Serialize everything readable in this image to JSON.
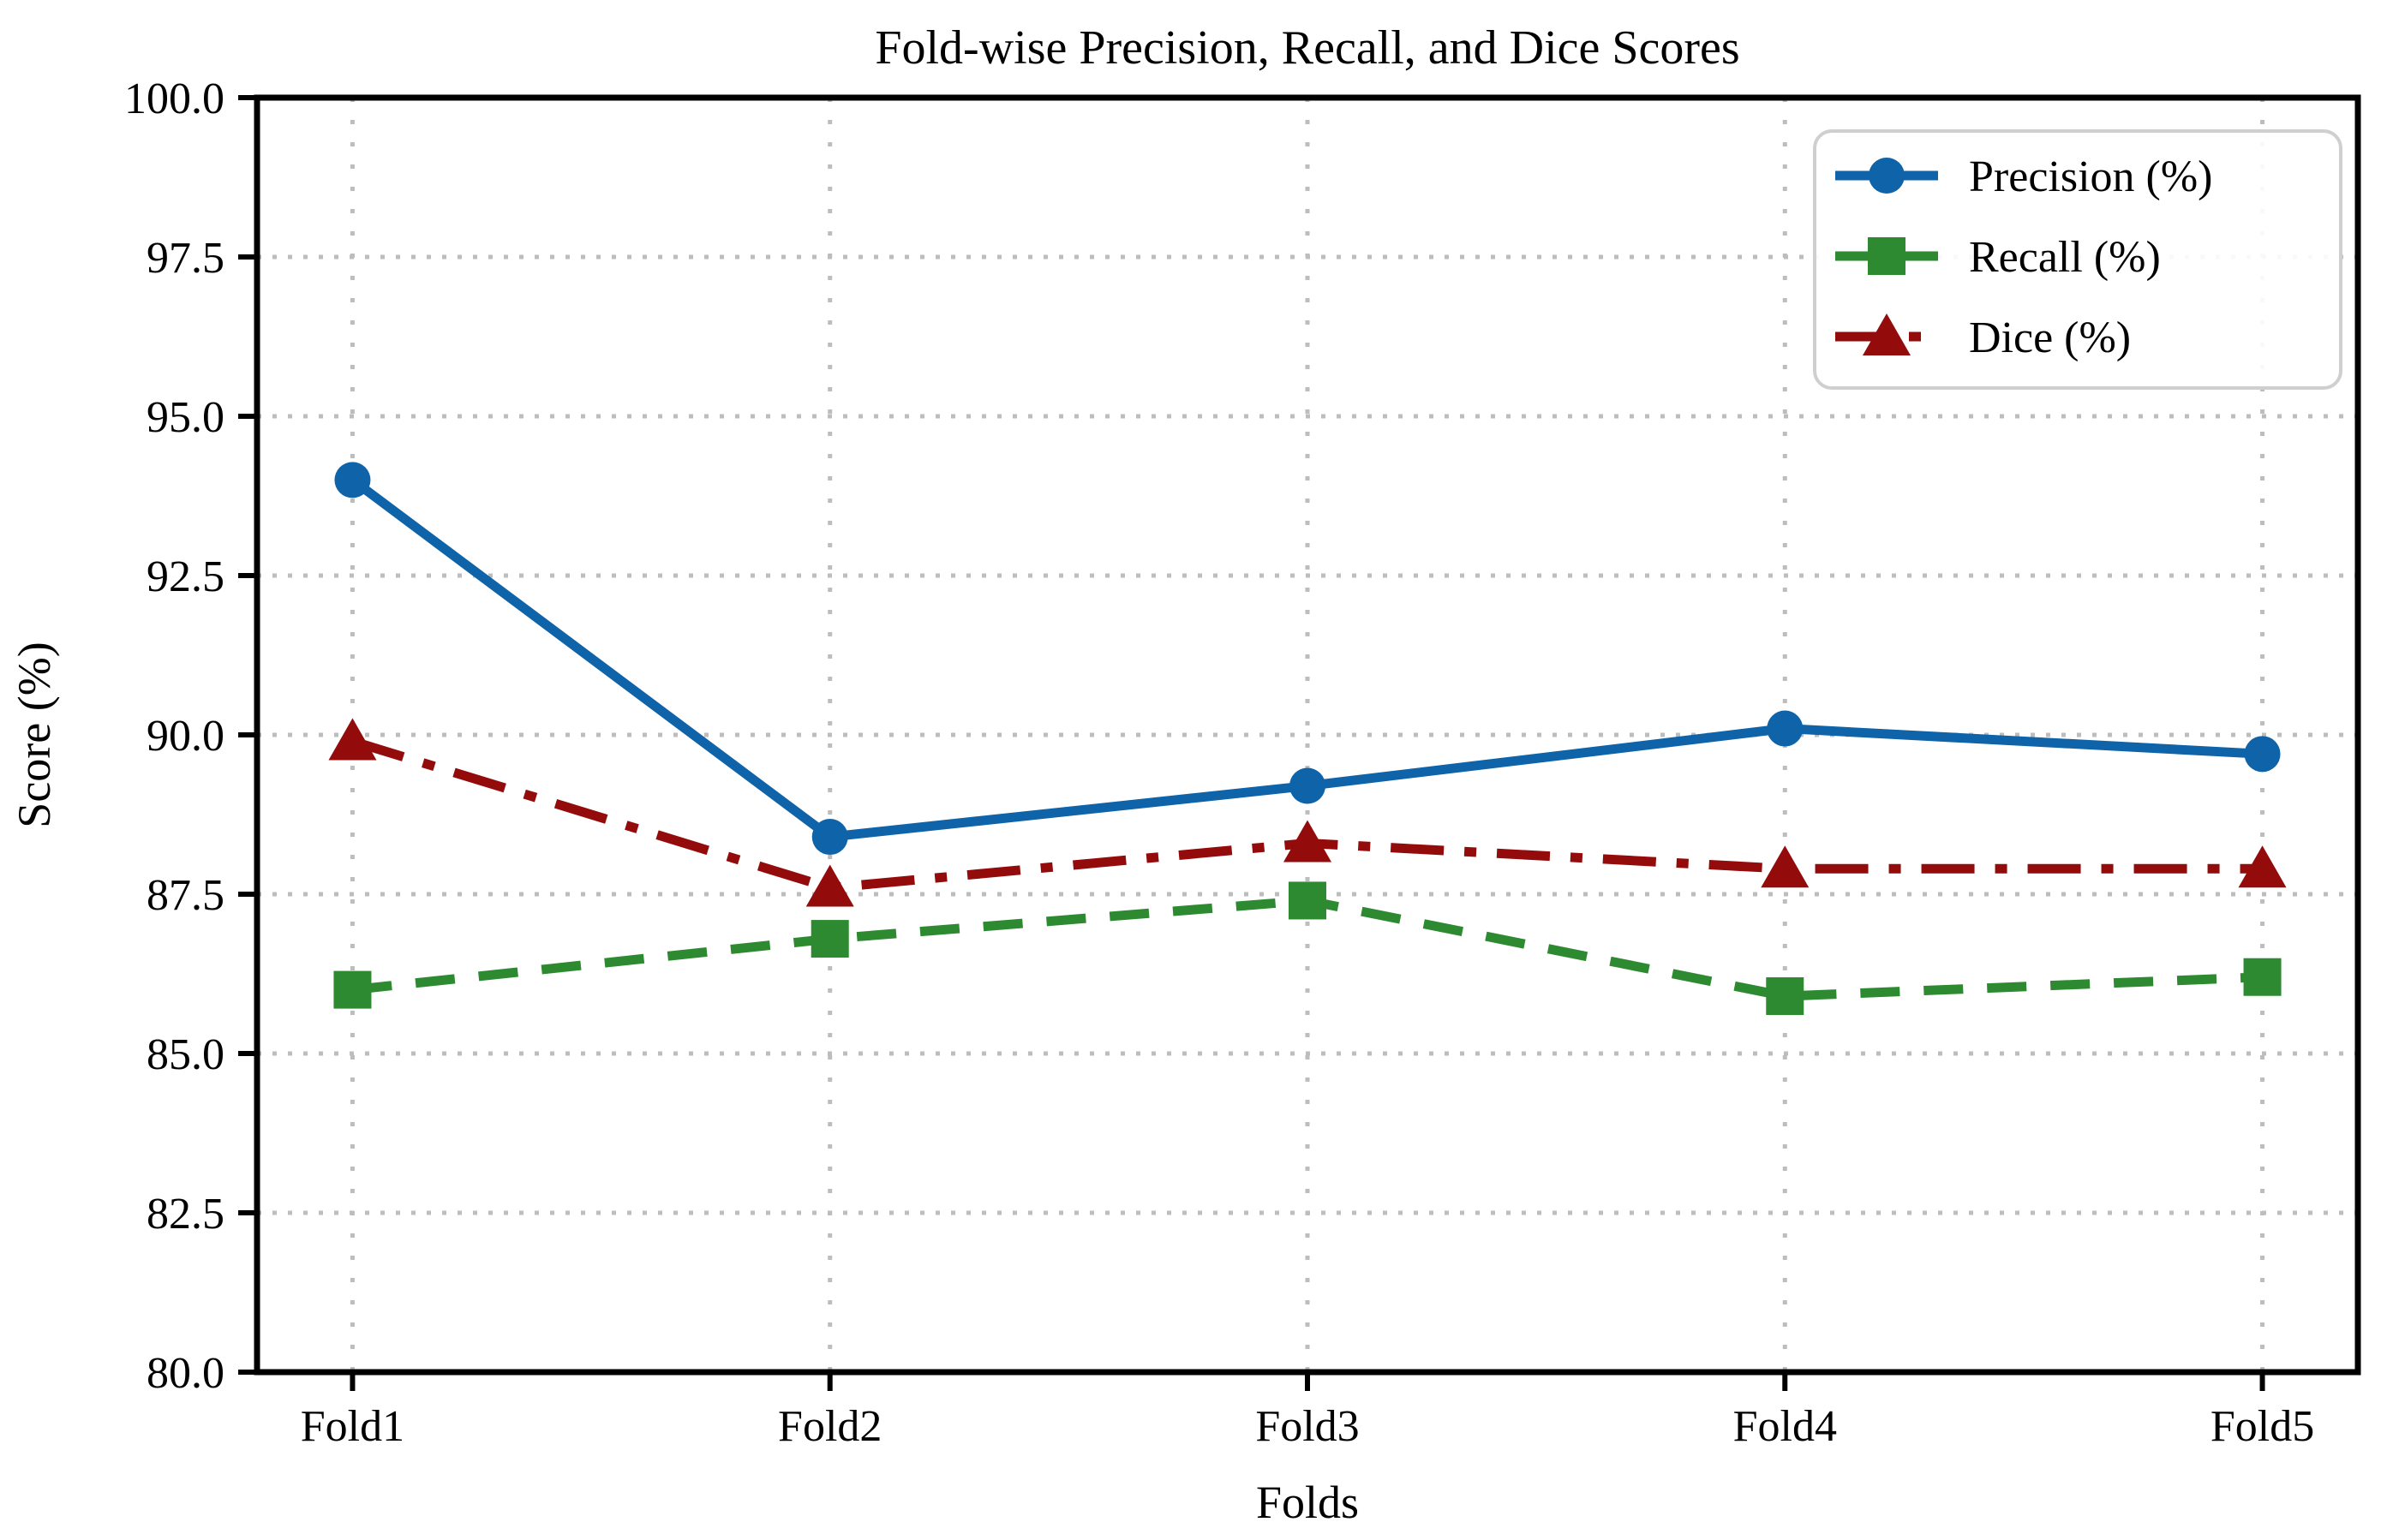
{
  "chart_data": {
    "type": "line",
    "title": "Fold-wise Precision, Recall, and Dice Scores",
    "xlabel": "Folds",
    "ylabel": "Score (%)",
    "categories": [
      "Fold1",
      "Fold2",
      "Fold3",
      "Fold4",
      "Fold5"
    ],
    "ylim": [
      80.0,
      100.0
    ],
    "ytick_step": 2.5,
    "yticks": [
      "100.0",
      "97.5",
      "95.0",
      "92.5",
      "90.0",
      "87.5",
      "85.0",
      "82.5",
      "80.0"
    ],
    "grid": true,
    "grid_style": "dotted",
    "legend_position": "upper-right",
    "series": [
      {
        "name": "Precision (%)",
        "values": [
          94.0,
          88.4,
          89.2,
          90.1,
          89.7
        ],
        "color": "#0f63a8",
        "linestyle": "solid",
        "marker": "circle"
      },
      {
        "name": "Recall (%)",
        "values": [
          86.0,
          86.8,
          87.4,
          85.9,
          86.2
        ],
        "color": "#2d8a30",
        "linestyle": "dashed",
        "marker": "square"
      },
      {
        "name": "Dice (%)",
        "values": [
          89.9,
          87.6,
          88.3,
          87.9,
          87.9
        ],
        "color": "#930b0b",
        "linestyle": "dashdot",
        "marker": "triangle"
      }
    ],
    "colors": {
      "grid": "#bdbdbd",
      "axis": "#000000",
      "legend_border": "#cfcfcf",
      "background": "#ffffff"
    }
  }
}
